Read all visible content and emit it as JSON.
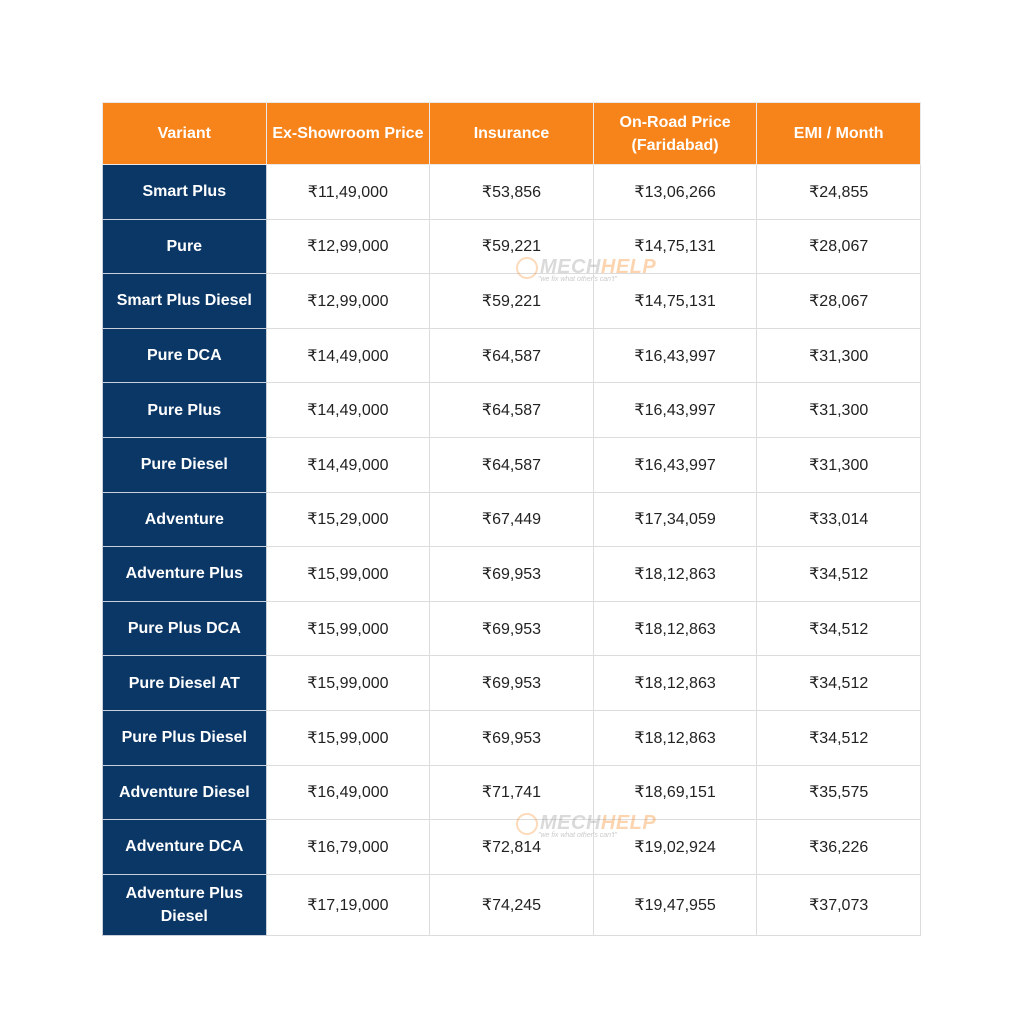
{
  "headers": [
    "Variant",
    "Ex-Showroom Price",
    "Insurance",
    "On-Road Price (Faridabad)",
    "EMI / Month"
  ],
  "rows": [
    [
      "Smart Plus",
      "₹11,49,000",
      "₹53,856",
      "₹13,06,266",
      "₹24,855"
    ],
    [
      "Pure",
      "₹12,99,000",
      "₹59,221",
      "₹14,75,131",
      "₹28,067"
    ],
    [
      "Smart Plus Diesel",
      "₹12,99,000",
      "₹59,221",
      "₹14,75,131",
      "₹28,067"
    ],
    [
      "Pure DCA",
      "₹14,49,000",
      "₹64,587",
      "₹16,43,997",
      "₹31,300"
    ],
    [
      "Pure Plus",
      "₹14,49,000",
      "₹64,587",
      "₹16,43,997",
      "₹31,300"
    ],
    [
      "Pure Diesel",
      "₹14,49,000",
      "₹64,587",
      "₹16,43,997",
      "₹31,300"
    ],
    [
      "Adventure",
      "₹15,29,000",
      "₹67,449",
      "₹17,34,059",
      "₹33,014"
    ],
    [
      "Adventure Plus",
      "₹15,99,000",
      "₹69,953",
      "₹18,12,863",
      "₹34,512"
    ],
    [
      "Pure Plus DCA",
      "₹15,99,000",
      "₹69,953",
      "₹18,12,863",
      "₹34,512"
    ],
    [
      "Pure Diesel AT",
      "₹15,99,000",
      "₹69,953",
      "₹18,12,863",
      "₹34,512"
    ],
    [
      "Pure Plus Diesel",
      "₹15,99,000",
      "₹69,953",
      "₹18,12,863",
      "₹34,512"
    ],
    [
      "Adventure Diesel",
      "₹16,49,000",
      "₹71,741",
      "₹18,69,151",
      "₹35,575"
    ],
    [
      "Adventure DCA",
      "₹16,79,000",
      "₹72,814",
      "₹19,02,924",
      "₹36,226"
    ],
    [
      "Adventure Plus Diesel",
      "₹17,19,000",
      "₹74,245",
      "₹19,47,955",
      "₹37,073"
    ]
  ],
  "watermark": {
    "brand_a": "MECH",
    "brand_b": "HELP",
    "tagline": "\"we fix what other's can't\""
  },
  "colors": {
    "header": "#f7841a",
    "variant": "#0b3767"
  }
}
